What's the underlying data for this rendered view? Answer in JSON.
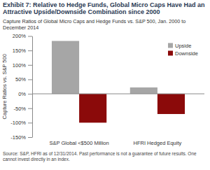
{
  "chart_data": {
    "type": "bar",
    "title": "Exhibit 7: Relative to Hedge Funds, Global Micro Caps Have Had an Attractive Upside/Downside Combination since 2000",
    "subtitle": "Capture Ratios of Global Micro Caps and Hedge Funds vs. S&P 500, Jan. 2000 to December 2014",
    "y_label": "Capture Ratios vs. S&P 500",
    "source": "Source: S&P, HFRI as of 12/31/2014.  Past performance is not a guarantee of future results.  One cannot invest directly in an index.",
    "categories": [
      "S&P Global <$500 Million",
      "HFRI Hedged Equity"
    ],
    "series": [
      {
        "name": "Upside",
        "color": "#a6a6a6",
        "values": [
          183,
          22
        ]
      },
      {
        "name": "Downside",
        "color": "#8b0a0a",
        "values": [
          -100,
          -70
        ]
      }
    ],
    "ylim": [
      -150,
      200
    ],
    "yticks": [
      {
        "value": -150,
        "label": "-150%"
      },
      {
        "value": -100,
        "label": "-100%"
      },
      {
        "value": -50,
        "label": "-50%"
      },
      {
        "value": 0,
        "label": "0%"
      },
      {
        "value": 50,
        "label": "50%"
      },
      {
        "value": 100,
        "label": "100%"
      },
      {
        "value": 150,
        "label": "150%"
      },
      {
        "value": 200,
        "label": "200%"
      }
    ],
    "grid": false,
    "legend": "upper right"
  }
}
